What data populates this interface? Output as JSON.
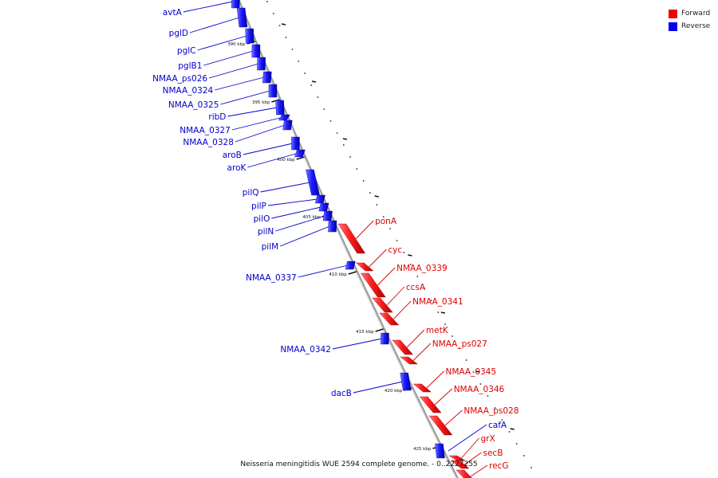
{
  "legend": [
    {
      "label": "Forward",
      "color": "#ee0000"
    },
    {
      "label": "Reverse",
      "color": "#0000ee"
    }
  ],
  "caption": "Neisseria meningitidis WUE 2594 complete genome. - 0..2227255",
  "chart_data": {
    "type": "diagram",
    "ticks": [
      "390 kbp",
      "395 kbp",
      "400 kbp",
      "405 kbp",
      "410 kbp",
      "415 kbp",
      "420 kbp",
      "425 kbp"
    ],
    "genes": [
      {
        "name": "avtA",
        "strand": "reverse"
      },
      {
        "name": "pglD",
        "strand": "reverse"
      },
      {
        "name": "pglC",
        "strand": "reverse"
      },
      {
        "name": "pglB1",
        "strand": "reverse"
      },
      {
        "name": "NMAA_ps026",
        "strand": "reverse"
      },
      {
        "name": "NMAA_0324",
        "strand": "reverse"
      },
      {
        "name": "NMAA_0325",
        "strand": "reverse"
      },
      {
        "name": "ribD",
        "strand": "reverse"
      },
      {
        "name": "NMAA_0327",
        "strand": "reverse"
      },
      {
        "name": "NMAA_0328",
        "strand": "reverse"
      },
      {
        "name": "aroB",
        "strand": "reverse"
      },
      {
        "name": "aroK",
        "strand": "reverse"
      },
      {
        "name": "pilQ",
        "strand": "reverse"
      },
      {
        "name": "pilP",
        "strand": "reverse"
      },
      {
        "name": "pilO",
        "strand": "reverse"
      },
      {
        "name": "pilN",
        "strand": "reverse"
      },
      {
        "name": "pilM",
        "strand": "reverse"
      },
      {
        "name": "NMAA_0337",
        "strand": "reverse"
      },
      {
        "name": "NMAA_0342",
        "strand": "reverse"
      },
      {
        "name": "dacB",
        "strand": "reverse"
      },
      {
        "name": "cafA",
        "strand": "reverse"
      },
      {
        "name": "ponA",
        "strand": "forward"
      },
      {
        "name": "cyc",
        "strand": "forward"
      },
      {
        "name": "NMAA_0339",
        "strand": "forward"
      },
      {
        "name": "ccsA",
        "strand": "forward"
      },
      {
        "name": "NMAA_0341",
        "strand": "forward"
      },
      {
        "name": "metK",
        "strand": "forward"
      },
      {
        "name": "NMAA_ps027",
        "strand": "forward"
      },
      {
        "name": "NMAA_0345",
        "strand": "forward"
      },
      {
        "name": "NMAA_0346",
        "strand": "forward"
      },
      {
        "name": "NMAA_ps028",
        "strand": "forward"
      },
      {
        "name": "grX",
        "strand": "forward"
      },
      {
        "name": "secB",
        "strand": "forward"
      },
      {
        "name": "recG",
        "strand": "forward"
      }
    ]
  }
}
